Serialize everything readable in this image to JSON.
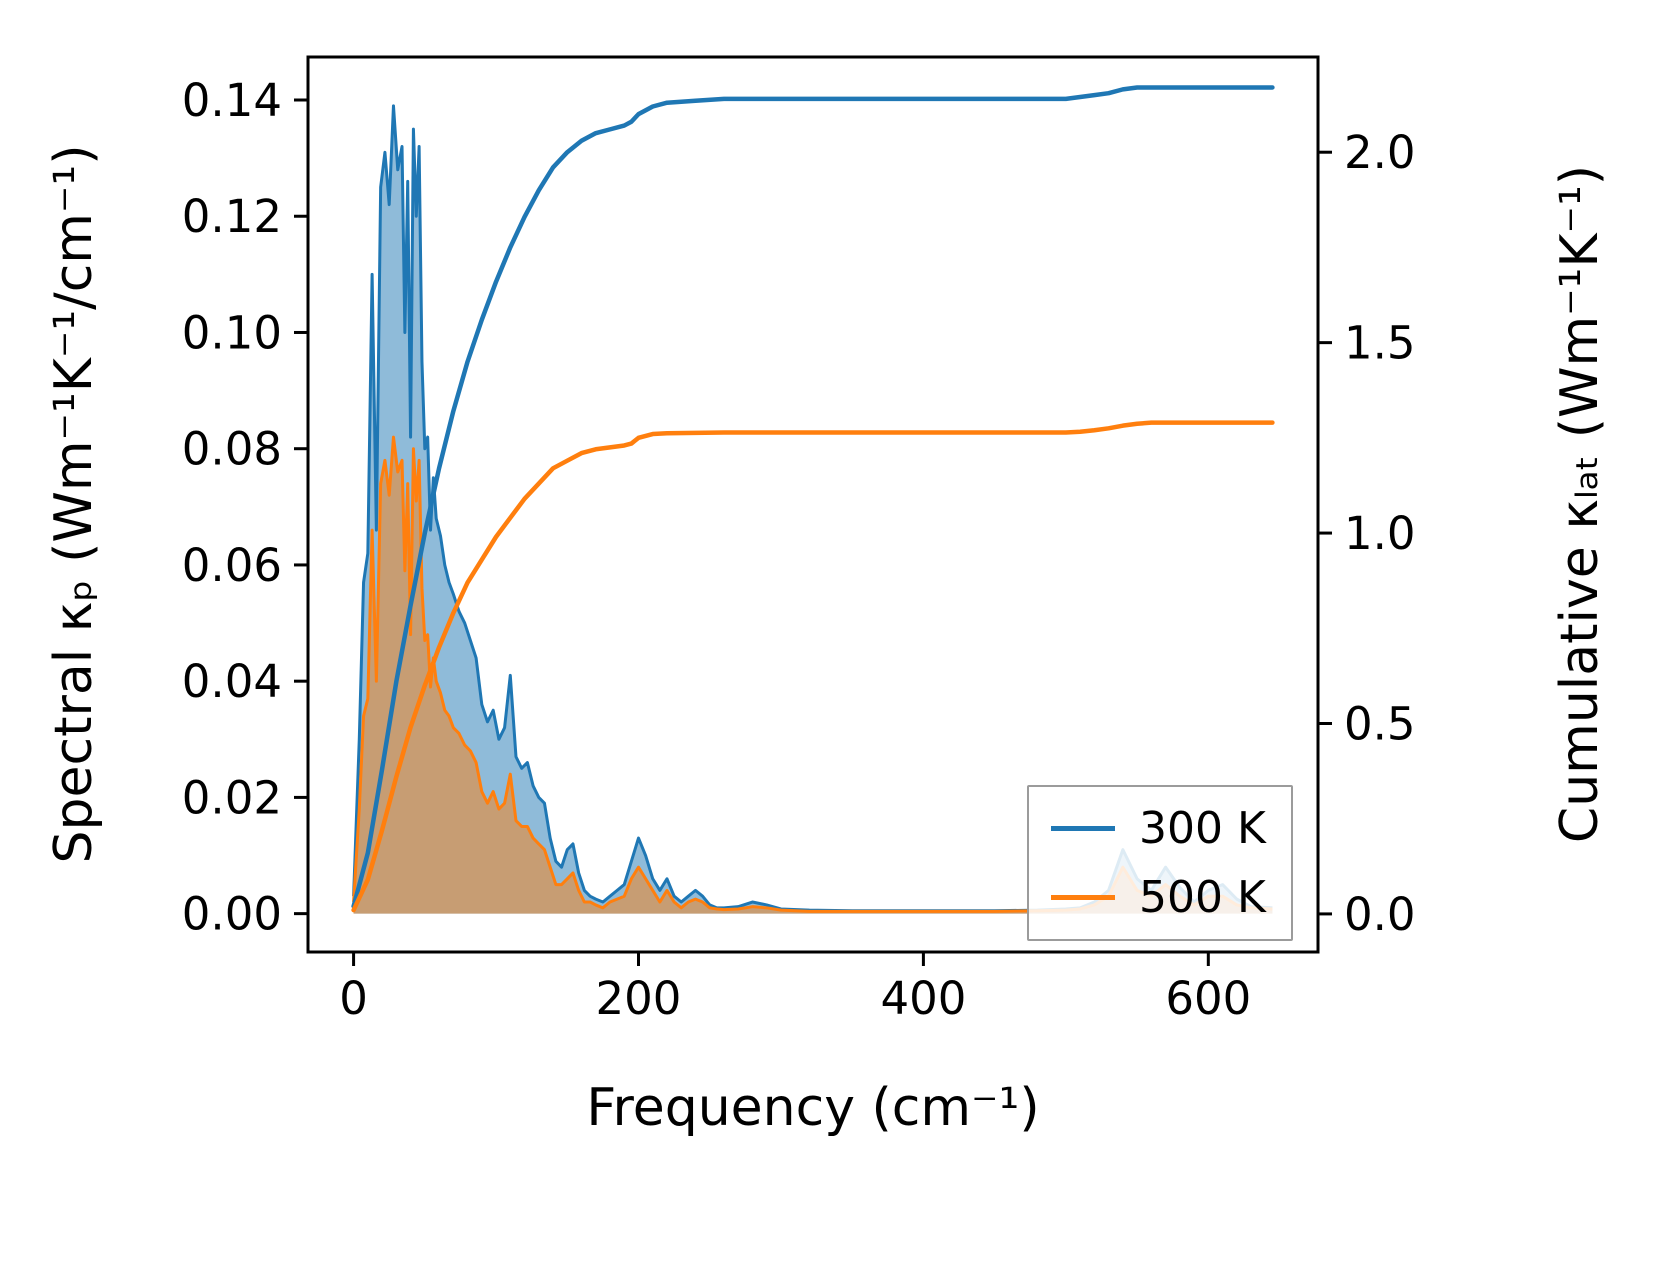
{
  "chart_data": {
    "type": "area",
    "description": "Dual-axis plot: filled spectral thermal conductivity curves (left axis) and cumulative lattice thermal conductivity curves (right axis) vs phonon frequency",
    "xlabel": "Frequency (cm⁻¹)",
    "ylabel_left": "Spectral κₚ (Wm⁻¹K⁻¹/cm⁻¹)",
    "ylabel_right": "Cumulative κₗₐₜ (Wm⁻¹K⁻¹)",
    "xlim": [
      -32,
      677
    ],
    "ylim_left": [
      -0.0066,
      0.1474
    ],
    "ylim_right": [
      -0.1,
      2.25
    ],
    "grid": false,
    "legend_position": "lower right inside axes",
    "xticks": {
      "values": [
        0,
        200,
        400,
        600
      ],
      "labels": [
        "0",
        "200",
        "400",
        "600"
      ]
    },
    "yticks_left": {
      "values": [
        0.0,
        0.02,
        0.04,
        0.06,
        0.08,
        0.1,
        0.12,
        0.14
      ],
      "labels": [
        "0.00",
        "0.02",
        "0.04",
        "0.06",
        "0.08",
        "0.10",
        "0.12",
        "0.14"
      ]
    },
    "yticks_right": {
      "values": [
        0.0,
        0.5,
        1.0,
        1.5,
        2.0
      ],
      "labels": [
        "0.0",
        "0.5",
        "1.0",
        "1.5",
        "2.0"
      ]
    },
    "colors": {
      "blue_300K": "#1f77b4",
      "orange_500K": "#ff7f0e",
      "spine": "#000000",
      "fill_opacity": 0.5
    },
    "spectral_x": [
      0,
      4,
      7,
      10,
      13,
      16,
      19,
      22,
      25,
      28,
      31,
      34,
      36,
      38,
      40,
      42,
      44,
      46,
      48,
      50,
      52,
      54,
      56,
      58,
      61,
      64,
      67,
      70,
      74,
      78,
      82,
      86,
      90,
      94,
      98,
      102,
      106,
      110,
      114,
      118,
      122,
      126,
      130,
      134,
      138,
      142,
      146,
      150,
      154,
      158,
      162,
      166,
      170,
      175,
      180,
      185,
      190,
      195,
      200,
      205,
      210,
      215,
      220,
      225,
      230,
      235,
      240,
      245,
      250,
      255,
      260,
      270,
      280,
      290,
      300,
      320,
      350,
      400,
      450,
      480,
      500,
      510,
      520,
      530,
      540,
      550,
      560,
      570,
      580,
      590,
      600,
      610,
      620,
      630,
      645
    ],
    "cumulative_x": [
      0,
      10,
      20,
      30,
      40,
      50,
      60,
      70,
      80,
      90,
      100,
      110,
      120,
      130,
      140,
      150,
      160,
      170,
      180,
      190,
      195,
      200,
      210,
      220,
      240,
      260,
      280,
      300,
      350,
      400,
      450,
      500,
      510,
      520,
      530,
      540,
      550,
      560,
      580,
      600,
      620,
      645
    ],
    "series": [
      {
        "name": "300 K spectral",
        "axis": "left",
        "style": "area",
        "color": "#1f77b4",
        "x_ref": "spectral_x",
        "y": [
          0.003,
          0.03,
          0.057,
          0.062,
          0.11,
          0.066,
          0.125,
          0.131,
          0.122,
          0.139,
          0.128,
          0.132,
          0.1,
          0.126,
          0.082,
          0.135,
          0.12,
          0.132,
          0.095,
          0.08,
          0.082,
          0.066,
          0.075,
          0.068,
          0.065,
          0.06,
          0.057,
          0.055,
          0.052,
          0.05,
          0.047,
          0.044,
          0.036,
          0.033,
          0.035,
          0.03,
          0.032,
          0.041,
          0.027,
          0.025,
          0.026,
          0.022,
          0.02,
          0.019,
          0.013,
          0.009,
          0.008,
          0.011,
          0.012,
          0.007,
          0.004,
          0.003,
          0.0025,
          0.002,
          0.003,
          0.004,
          0.005,
          0.009,
          0.013,
          0.01,
          0.006,
          0.004,
          0.006,
          0.003,
          0.002,
          0.003,
          0.004,
          0.003,
          0.0015,
          0.001,
          0.001,
          0.0012,
          0.002,
          0.0015,
          0.0008,
          0.0006,
          0.0005,
          0.0005,
          0.0005,
          0.0006,
          0.0008,
          0.001,
          0.002,
          0.004,
          0.011,
          0.006,
          0.004,
          0.008,
          0.0045,
          0.002,
          0.004,
          0.005,
          0.0025,
          0.0012,
          0.001
        ]
      },
      {
        "name": "500 K spectral",
        "axis": "left",
        "style": "area",
        "color": "#ff7f0e",
        "x_ref": "spectral_x",
        "y": [
          0.002,
          0.018,
          0.034,
          0.037,
          0.066,
          0.04,
          0.074,
          0.078,
          0.072,
          0.082,
          0.076,
          0.078,
          0.059,
          0.074,
          0.048,
          0.08,
          0.071,
          0.078,
          0.056,
          0.047,
          0.048,
          0.039,
          0.044,
          0.04,
          0.038,
          0.035,
          0.034,
          0.032,
          0.031,
          0.029,
          0.028,
          0.026,
          0.021,
          0.019,
          0.021,
          0.018,
          0.019,
          0.024,
          0.016,
          0.015,
          0.015,
          0.013,
          0.012,
          0.011,
          0.008,
          0.005,
          0.005,
          0.006,
          0.007,
          0.004,
          0.002,
          0.002,
          0.0015,
          0.001,
          0.002,
          0.0025,
          0.003,
          0.006,
          0.008,
          0.006,
          0.004,
          0.002,
          0.004,
          0.002,
          0.001,
          0.002,
          0.0025,
          0.002,
          0.001,
          0.0008,
          0.0007,
          0.0008,
          0.0012,
          0.001,
          0.0006,
          0.0004,
          0.0004,
          0.0004,
          0.0004,
          0.0005,
          0.0006,
          0.0008,
          0.0015,
          0.003,
          0.008,
          0.004,
          0.003,
          0.005,
          0.003,
          0.0015,
          0.003,
          0.003,
          0.0015,
          0.001,
          0.0008
        ]
      },
      {
        "name": "300 K cumulative",
        "axis": "right",
        "style": "line",
        "color": "#1f77b4",
        "x_ref": "cumulative_x",
        "y": [
          0.02,
          0.16,
          0.38,
          0.61,
          0.81,
          1.0,
          1.17,
          1.32,
          1.45,
          1.56,
          1.66,
          1.75,
          1.83,
          1.9,
          1.96,
          2.0,
          2.03,
          2.05,
          2.06,
          2.07,
          2.08,
          2.1,
          2.12,
          2.13,
          2.135,
          2.14,
          2.14,
          2.14,
          2.14,
          2.14,
          2.14,
          2.14,
          2.145,
          2.15,
          2.155,
          2.165,
          2.17,
          2.17,
          2.17,
          2.17,
          2.17,
          2.17
        ]
      },
      {
        "name": "500 K cumulative",
        "axis": "right",
        "style": "line",
        "color": "#ff7f0e",
        "x_ref": "cumulative_x",
        "y": [
          0.01,
          0.09,
          0.22,
          0.36,
          0.49,
          0.6,
          0.7,
          0.79,
          0.87,
          0.93,
          0.99,
          1.04,
          1.09,
          1.13,
          1.17,
          1.19,
          1.21,
          1.22,
          1.225,
          1.23,
          1.235,
          1.25,
          1.26,
          1.262,
          1.263,
          1.264,
          1.264,
          1.264,
          1.264,
          1.264,
          1.264,
          1.264,
          1.266,
          1.27,
          1.275,
          1.282,
          1.287,
          1.29,
          1.29,
          1.29,
          1.29,
          1.29
        ]
      }
    ],
    "legend": {
      "entries": [
        {
          "label": "300 K",
          "color": "#1f77b4"
        },
        {
          "label": "500 K",
          "color": "#ff7f0e"
        }
      ]
    }
  }
}
